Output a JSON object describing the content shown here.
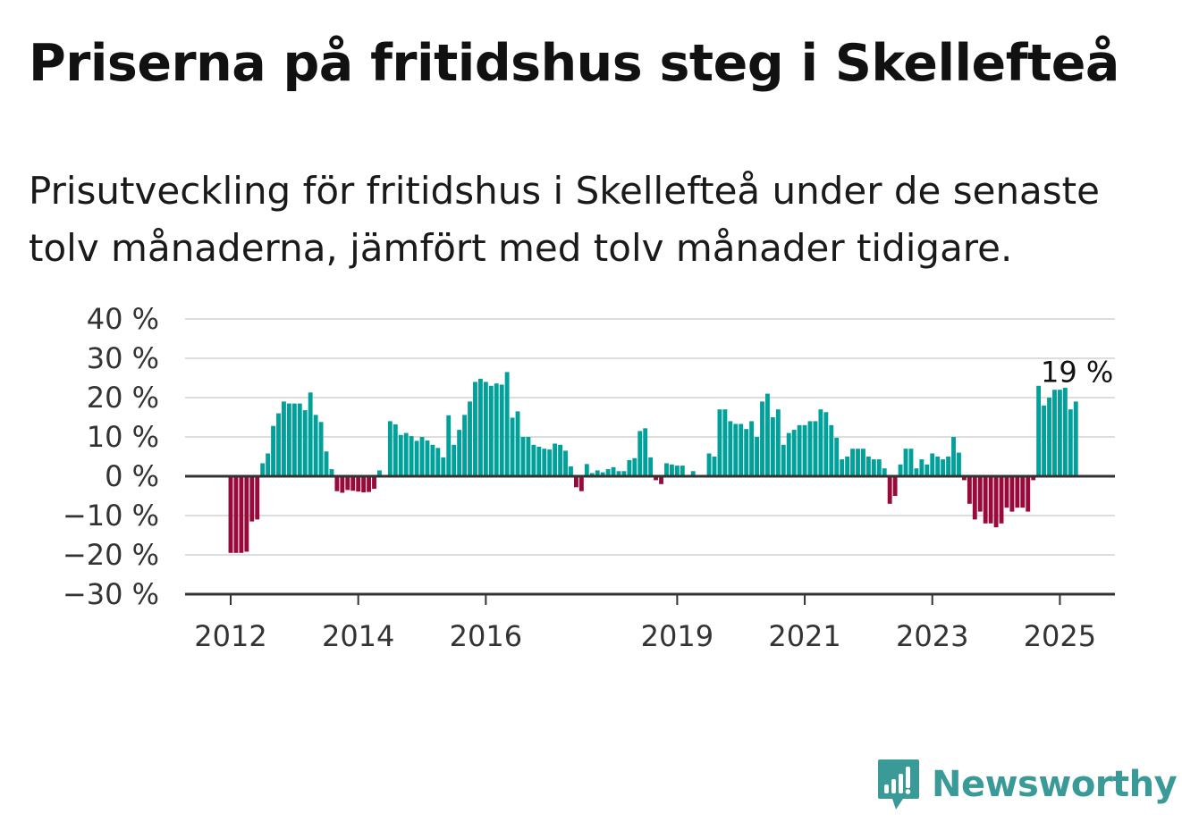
{
  "title": "Priserna på fritidshus steg i Skellefteå",
  "subtitle": "Prisutveckling för fritidshus i Skellefteå under de senaste tolv månaderna, jämfört med tolv månader tidigare.",
  "brand": {
    "name": "Newsworthy",
    "color": "#3a9a98"
  },
  "colors": {
    "positive": "#00a19a",
    "negative": "#990a3c",
    "grid": "#dddddd",
    "axis": "#333333"
  },
  "chart_data": {
    "type": "bar",
    "title": "Priserna på fritidshus steg i Skellefteå",
    "xlabel": "",
    "ylabel": "",
    "y_unit": "%",
    "ylim": [
      -30,
      40
    ],
    "y_ticks": [
      40,
      30,
      20,
      10,
      0,
      -10,
      -20,
      -30
    ],
    "y_tick_labels": [
      "40 %",
      "30 %",
      "20 %",
      "10 %",
      "0 %",
      "−10 %",
      "−20 %",
      "−30 %"
    ],
    "x_tick_years": [
      2012,
      2014,
      2016,
      2019,
      2021,
      2023,
      2025
    ],
    "x_tick_labels": [
      "2012",
      "2014",
      "2016",
      "2019",
      "2021",
      "2023",
      "2025"
    ],
    "grid": true,
    "legend": "none",
    "start": "2012-01",
    "annotation": {
      "label": "19 %",
      "at": "2025-04"
    },
    "series": [
      {
        "values": [
          -19.5,
          -19.5,
          -19.5,
          -19.2,
          -11.5,
          -11.0,
          3.3,
          5.8,
          12.8,
          16.0,
          19.0,
          18.5,
          18.5,
          18.5,
          16.8,
          21.3,
          15.6,
          13.8,
          6.3,
          1.8,
          -3.8,
          -4.2,
          -3.5,
          -3.7,
          -3.9,
          -4.1,
          -4.0,
          -3.2,
          1.5,
          0.0,
          14.0,
          13.2,
          10.5,
          11.0,
          10.2,
          9.0,
          10.0,
          9.1,
          8.0,
          7.2,
          4.8,
          15.5,
          8.0,
          11.8,
          15.6,
          19.0,
          24.0,
          24.8,
          24.0,
          23.0,
          23.6,
          23.3,
          26.5,
          14.9,
          16.5,
          10.0,
          10.0,
          8.0,
          7.5,
          7.0,
          6.8,
          8.3,
          8.0,
          6.5,
          2.5,
          -2.8,
          -3.8,
          3.1,
          0.8,
          1.5,
          1.0,
          1.8,
          2.3,
          1.3,
          1.3,
          4.1,
          4.6,
          11.5,
          12.2,
          4.8,
          -1.0,
          -2.0,
          3.3,
          3.0,
          2.7,
          2.7,
          0.3,
          1.3,
          0.0,
          0.0,
          5.8,
          5.0,
          17.0,
          17.0,
          14.0,
          13.3,
          13.3,
          12.0,
          14.0,
          10.0,
          19.0,
          21.0,
          15.0,
          17.0,
          8.0,
          11.0,
          11.8,
          13.0,
          13.0,
          14.0,
          14.0,
          17.0,
          16.3,
          13.0,
          9.8,
          4.3,
          5.0,
          7.0,
          7.0,
          7.0,
          5.0,
          4.3,
          4.3,
          2.0,
          -7.0,
          -5.0,
          3.0,
          7.0,
          7.0,
          2.0,
          4.3,
          3.0,
          5.8,
          5.0,
          4.3,
          5.0,
          10.0,
          6.0,
          -1.0,
          -7.0,
          -11.0,
          -9.0,
          -12.0,
          -12.0,
          -13.0,
          -12.0,
          -8.0,
          -9.0,
          -8.0,
          -8.0,
          -9.0,
          -1.0,
          23.0,
          18.0,
          20.0,
          22.0,
          22.0,
          22.5,
          17.0,
          19.0
        ]
      }
    ]
  }
}
